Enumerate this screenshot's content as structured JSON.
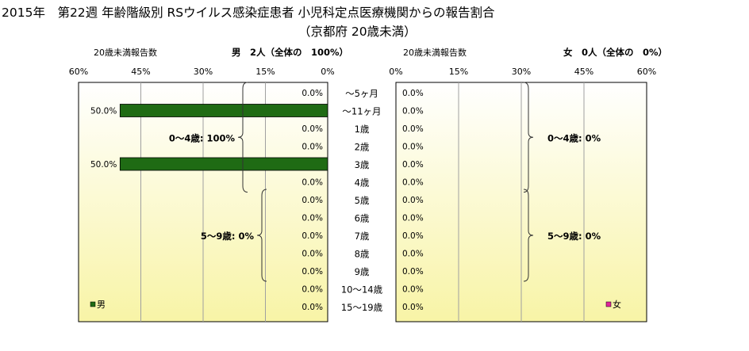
{
  "header": {
    "title_line1": "2015年　第22週 年齢階級別 RSウイルス感染症患者 小児科定点医療機関からの報告割合",
    "title_line2": "（京都府 20歳未満）"
  },
  "chart_data": [
    {
      "type": "bar",
      "orientation": "horizontal-reversed",
      "side": "left",
      "panel_label": "20歳未満報告数",
      "heading": "男　2人（全体の　100%）",
      "legend": "男",
      "categories": [
        "〜5ヶ月",
        "〜11ヶ月",
        "1歳",
        "2歳",
        "3歳",
        "4歳",
        "5歳",
        "6歳",
        "7歳",
        "8歳",
        "9歳",
        "10〜14歳",
        "15〜19歳"
      ],
      "series": [
        {
          "name": "男",
          "values": [
            0,
            50,
            0,
            0,
            50,
            0,
            0,
            0,
            0,
            0,
            0,
            0,
            0
          ]
        }
      ],
      "data_labels": [
        "0.0%",
        "50.0%",
        "0.0%",
        "0.0%",
        "50.0%",
        "0.0%",
        "0.0%",
        "0.0%",
        "0.0%",
        "0.0%",
        "0.0%",
        "0.0%",
        "0.0%"
      ],
      "xlim": [
        0,
        60
      ],
      "ticks": [
        "60%",
        "45%",
        "30%",
        "15%",
        "0%"
      ],
      "tick_values": [
        60,
        45,
        30,
        15,
        0
      ],
      "bar_color": "#1f6b14",
      "groups": [
        {
          "label": "0〜4歳: 100%",
          "from": 0,
          "to": 5
        },
        {
          "label": "5〜9歳: 0%",
          "from": 6,
          "to": 10
        }
      ]
    },
    {
      "type": "bar",
      "orientation": "horizontal",
      "side": "right",
      "panel_label": "20歳未満報告数",
      "heading": "女　0人（全体の　0%）",
      "legend": "女",
      "categories": [
        "〜5ヶ月",
        "〜11ヶ月",
        "1歳",
        "2歳",
        "3歳",
        "4歳",
        "5歳",
        "6歳",
        "7歳",
        "8歳",
        "9歳",
        "10〜14歳",
        "15〜19歳"
      ],
      "series": [
        {
          "name": "女",
          "values": [
            0,
            0,
            0,
            0,
            0,
            0,
            0,
            0,
            0,
            0,
            0,
            0,
            0
          ]
        }
      ],
      "data_labels": [
        "0.0%",
        "0.0%",
        "0.0%",
        "0.0%",
        "0.0%",
        "0.0%",
        "0.0%",
        "0.0%",
        "0.0%",
        "0.0%",
        "0.0%",
        "0.0%",
        "0.0%"
      ],
      "xlim": [
        0,
        60
      ],
      "ticks": [
        "0%",
        "15%",
        "30%",
        "45%",
        "60%"
      ],
      "tick_values": [
        0,
        15,
        30,
        45,
        60
      ],
      "bar_color": "#e0249a",
      "groups": [
        {
          "label": "0〜4歳: 0%",
          "from": 0,
          "to": 5
        },
        {
          "label": "5〜9歳: 0%",
          "from": 6,
          "to": 10
        }
      ]
    }
  ],
  "colors": {
    "plot_top": "#ffffff",
    "plot_bottom": "#f8f4a6",
    "grid": "#a0a0a0",
    "male": "#1f6b14",
    "female": "#e0249a"
  }
}
